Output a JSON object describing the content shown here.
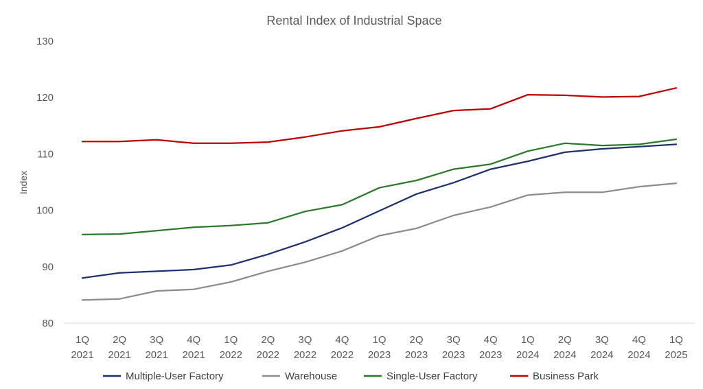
{
  "chart_data": {
    "type": "line",
    "title": "Rental Index of Industrial Space",
    "xlabel": "",
    "ylabel": "Index",
    "ylim": [
      80,
      130
    ],
    "yticks": [
      80,
      90,
      100,
      110,
      120,
      130
    ],
    "grid": "horizontal baseline only",
    "legend_position": "bottom",
    "categories": [
      [
        "1Q",
        "2021"
      ],
      [
        "2Q",
        "2021"
      ],
      [
        "3Q",
        "2021"
      ],
      [
        "4Q",
        "2021"
      ],
      [
        "1Q",
        "2022"
      ],
      [
        "2Q",
        "2022"
      ],
      [
        "3Q",
        "2022"
      ],
      [
        "4Q",
        "2022"
      ],
      [
        "1Q",
        "2023"
      ],
      [
        "2Q",
        "2023"
      ],
      [
        "3Q",
        "2023"
      ],
      [
        "4Q",
        "2023"
      ],
      [
        "1Q",
        "2024"
      ],
      [
        "2Q",
        "2024"
      ],
      [
        "3Q",
        "2024"
      ],
      [
        "4Q",
        "2024"
      ],
      [
        "1Q",
        "2025"
      ]
    ],
    "series": [
      {
        "name": "Multiple-User Factory",
        "color": "#1f3070",
        "values": [
          88.0,
          88.9,
          89.2,
          89.5,
          90.3,
          92.2,
          94.4,
          96.9,
          99.9,
          102.9,
          104.9,
          107.3,
          108.7,
          110.3,
          110.9,
          111.3,
          111.7
        ]
      },
      {
        "name": "Warehouse",
        "color": "#8c8c8c",
        "values": [
          84.1,
          84.3,
          85.7,
          86.0,
          87.3,
          89.2,
          90.8,
          92.8,
          95.5,
          96.8,
          99.1,
          100.6,
          102.7,
          103.2,
          103.2,
          104.2,
          104.8
        ]
      },
      {
        "name": "Single-User Factory",
        "color": "#2a7a2a",
        "values": [
          95.7,
          95.8,
          96.4,
          97.0,
          97.3,
          97.8,
          99.8,
          101.0,
          104.0,
          105.3,
          107.3,
          108.2,
          110.5,
          111.9,
          111.5,
          111.7,
          112.6
        ]
      },
      {
        "name": "Business Park",
        "color": "#c00000",
        "values": [
          112.2,
          112.2,
          112.5,
          111.9,
          111.9,
          112.1,
          113.0,
          114.1,
          114.8,
          116.3,
          117.7,
          118.0,
          120.5,
          120.4,
          120.1,
          120.2,
          121.7
        ]
      }
    ]
  }
}
